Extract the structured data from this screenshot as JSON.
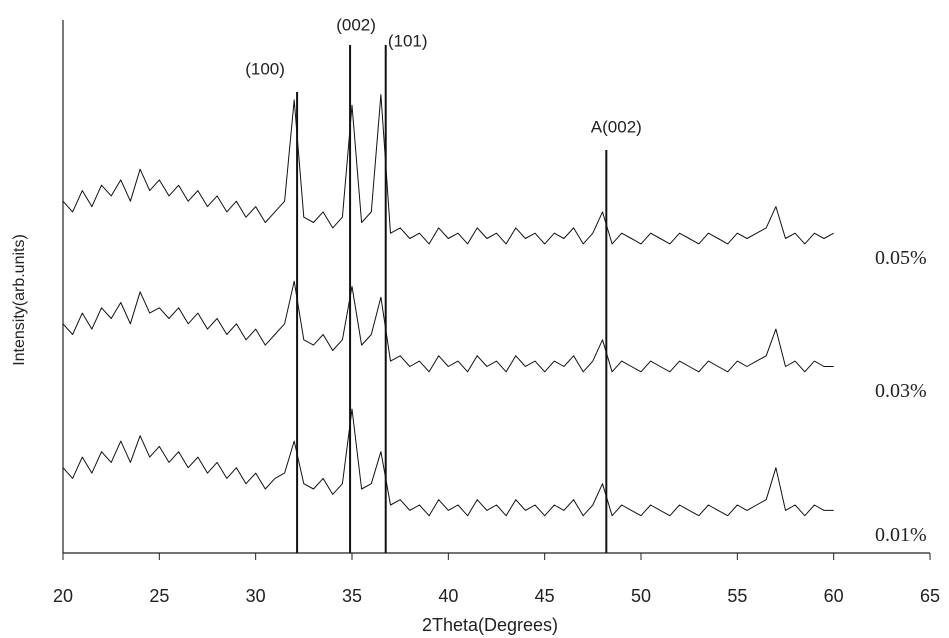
{
  "chart_data": {
    "type": "line",
    "xlabel": "2Theta(Degrees)",
    "ylabel": "Intensity(arb.units)",
    "xlim": [
      20,
      65
    ],
    "xticks": [
      20,
      25,
      30,
      35,
      40,
      45,
      50,
      55,
      60,
      65
    ],
    "ylim": [
      0,
      100
    ],
    "x": [
      20,
      20.5,
      21,
      21.5,
      22,
      22.5,
      23,
      23.5,
      24,
      24.5,
      25,
      25.5,
      26,
      26.5,
      27,
      27.5,
      28,
      28.5,
      29,
      29.5,
      30,
      30.5,
      31,
      31.5,
      32,
      32.5,
      33,
      33.5,
      34,
      34.5,
      35,
      35.5,
      36,
      36.5,
      37,
      37.5,
      38,
      38.5,
      39,
      39.5,
      40,
      40.5,
      41,
      41.5,
      42,
      42.5,
      43,
      43.5,
      44,
      44.5,
      45,
      45.5,
      46,
      46.5,
      47,
      47.5,
      48,
      48.5,
      49,
      49.5,
      50,
      50.5,
      51,
      51.5,
      52,
      52.5,
      53,
      53.5,
      54,
      54.5,
      55,
      55.5,
      56,
      56.5,
      57,
      57.5,
      58,
      58.5,
      59,
      59.5,
      60
    ],
    "series": [
      {
        "name": "0.05%",
        "color": "#111111",
        "values": [
          66,
          64,
          68,
          65,
          69,
          67,
          70,
          66,
          72,
          68,
          70,
          67,
          69,
          66,
          68,
          65,
          67,
          64,
          66,
          63,
          65,
          62,
          64,
          66,
          85,
          63,
          62,
          64,
          61,
          63,
          84,
          62,
          64,
          86,
          60,
          61,
          59,
          60,
          58,
          61,
          59,
          60,
          58,
          61,
          59,
          60,
          58,
          61,
          59,
          60,
          58,
          60,
          59,
          61,
          58,
          60,
          64,
          58,
          60,
          59,
          58,
          60,
          59,
          58,
          60,
          59,
          58,
          60,
          59,
          58,
          60,
          59,
          60,
          61,
          65,
          59,
          60,
          58,
          60,
          59,
          60
        ]
      },
      {
        "name": "0.03%",
        "color": "#111111",
        "values": [
          43,
          41,
          45,
          42,
          46,
          44,
          47,
          43,
          49,
          45,
          46,
          44,
          46,
          43,
          45,
          42,
          44,
          41,
          43,
          40,
          42,
          39,
          41,
          43,
          51,
          40,
          39,
          41,
          38,
          40,
          50,
          39,
          41,
          48,
          36,
          37,
          35,
          36,
          34,
          37,
          35,
          36,
          34,
          37,
          35,
          36,
          34,
          37,
          35,
          36,
          34,
          36,
          35,
          37,
          34,
          36,
          40,
          34,
          36,
          35,
          34,
          36,
          35,
          34,
          36,
          35,
          34,
          36,
          35,
          34,
          36,
          35,
          36,
          37,
          42,
          35,
          36,
          34,
          36,
          35,
          35
        ]
      },
      {
        "name": "0.01%",
        "color": "#111111",
        "values": [
          16,
          14,
          18,
          15,
          19,
          17,
          21,
          17,
          22,
          18,
          20,
          17,
          19,
          16,
          18,
          15,
          17,
          14,
          16,
          13,
          15,
          12,
          14,
          15,
          21,
          13,
          12,
          14,
          11,
          13,
          27,
          12,
          13,
          19,
          9,
          10,
          8,
          9,
          7,
          10,
          8,
          9,
          7,
          10,
          8,
          9,
          7,
          10,
          8,
          9,
          7,
          9,
          8,
          10,
          7,
          9,
          13,
          7,
          9,
          8,
          7,
          9,
          8,
          7,
          9,
          8,
          7,
          9,
          8,
          7,
          9,
          8,
          9,
          10,
          16,
          8,
          9,
          7,
          9,
          8,
          8
        ]
      }
    ],
    "reference_lines": [
      {
        "x": 32.15,
        "label": "(100)"
      },
      {
        "x": 34.9,
        "label": "(002)"
      },
      {
        "x": 36.75,
        "label": "(101)"
      },
      {
        "x": 48.2,
        "label": "A(002)"
      }
    ]
  }
}
